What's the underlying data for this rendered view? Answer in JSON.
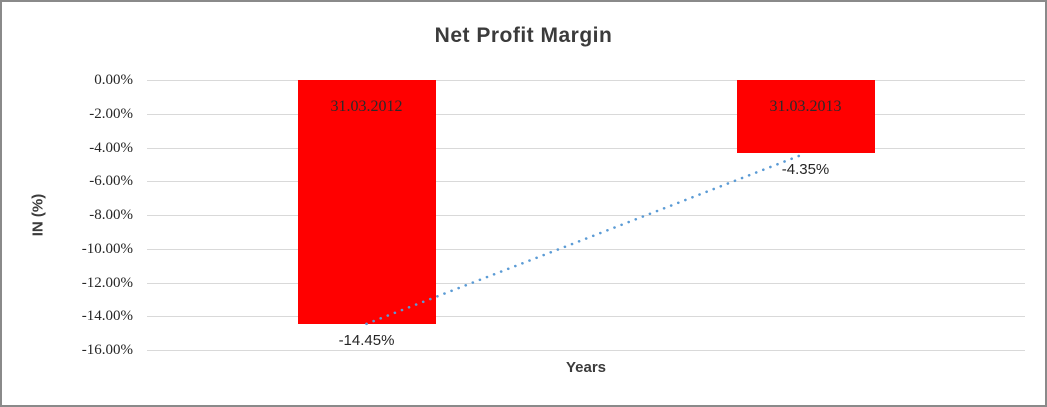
{
  "chart_data": {
    "type": "bar",
    "title": "Net Profit Margin",
    "xlabel": "Years",
    "ylabel": "IN (%)",
    "categories": [
      "31.03.2012",
      "31.03.2013"
    ],
    "values": [
      -14.45,
      -4.35
    ],
    "data_labels": [
      "-14.45%",
      "-4.35%"
    ],
    "ylim": [
      -16,
      0
    ],
    "ytick_step": 2,
    "ytick_labels": [
      "0.00%",
      "-2.00%",
      "-4.00%",
      "-6.00%",
      "-8.00%",
      "-10.00%",
      "-12.00%",
      "-14.00%",
      "-16.00%"
    ],
    "grid": true,
    "legend": "none",
    "bar_color": "#ff0000",
    "gridline_color": "#d9d9d9",
    "trendline": {
      "type": "linear",
      "style": "dotted",
      "color": "#5b9bd5",
      "points": [
        [
          0,
          -14.45
        ],
        [
          1,
          -4.35
        ]
      ]
    }
  }
}
